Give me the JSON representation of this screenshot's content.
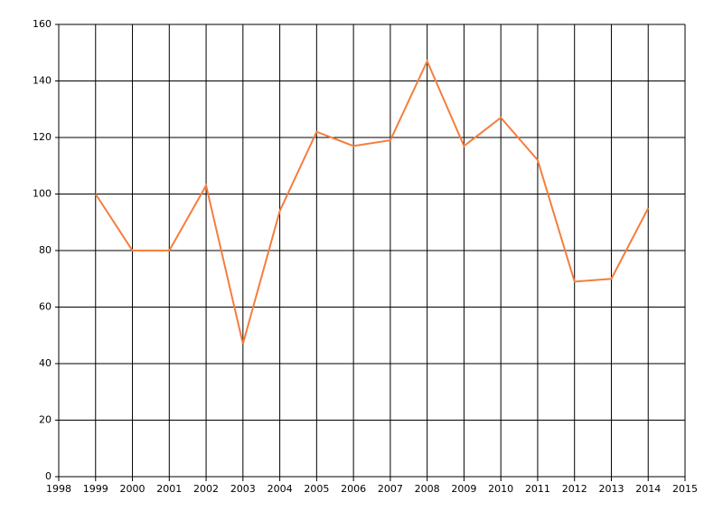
{
  "chart_data": {
    "type": "line",
    "x": [
      1999,
      2000,
      2001,
      2002,
      2003,
      2004,
      2005,
      2006,
      2007,
      2008,
      2009,
      2010,
      2011,
      2012,
      2013,
      2014
    ],
    "series": [
      {
        "color": "#f57d3d",
        "values": [
          100,
          80,
          80,
          103,
          47,
          94,
          122,
          117,
          119,
          147,
          117,
          127,
          112,
          69,
          70,
          95
        ]
      }
    ],
    "xlim": [
      1998,
      2015
    ],
    "xticks": [
      1998,
      1999,
      2000,
      2001,
      2002,
      2003,
      2004,
      2005,
      2006,
      2007,
      2008,
      2009,
      2010,
      2011,
      2012,
      2013,
      2014,
      2015
    ],
    "ylim": [
      0,
      160
    ],
    "yticks": [
      0,
      20,
      40,
      60,
      80,
      100,
      120,
      140,
      160
    ],
    "grid": true
  }
}
